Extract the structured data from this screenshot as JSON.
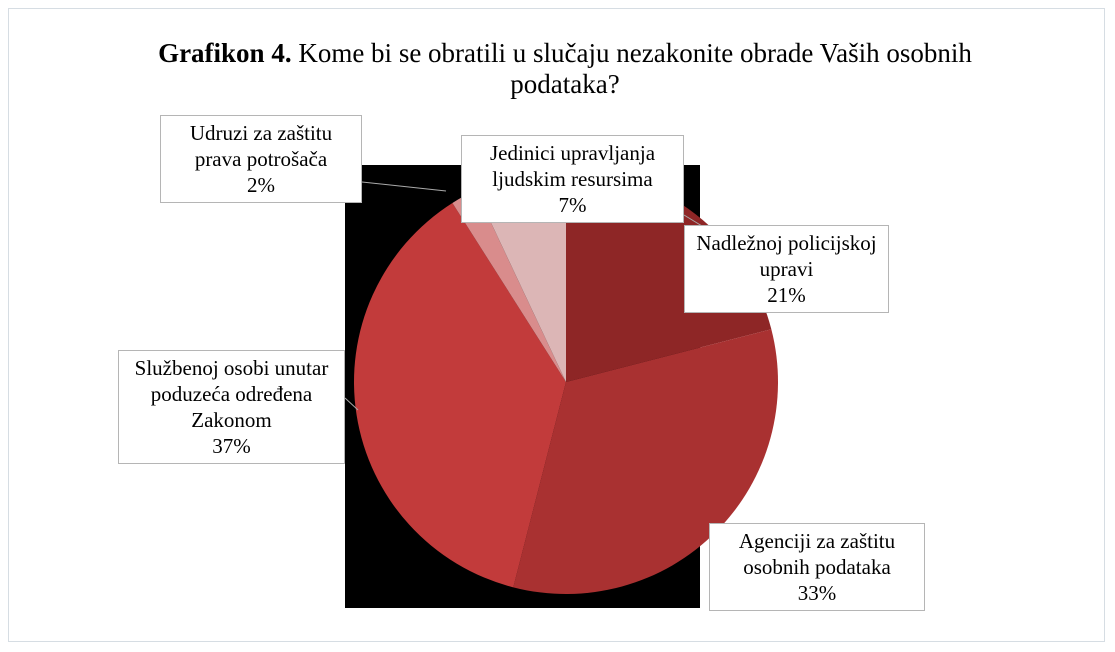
{
  "chart_data": {
    "type": "pie",
    "title_label": "Grafikon 4.",
    "title": "Kome bi se obratili u slučaju nezakonite obrade Vaših osobnih podataka?",
    "categories": [
      "Nadležnoj policijskoj upravi",
      "Agenciji za zaštitu osobnih podataka",
      "Službenoj osobi unutar poduzeća određena Zakonom",
      "Udruzi za zaštitu prava potrošača",
      "Jedinici upravljanja ljudskim resursima"
    ],
    "values": [
      21,
      33,
      37,
      2,
      7
    ],
    "value_labels": [
      "21%",
      "33%",
      "37%",
      "2%",
      "7%"
    ],
    "colors": [
      "#8e2626",
      "#a93131",
      "#c23b3b",
      "#d98c8c",
      "#dcb6b6"
    ]
  }
}
